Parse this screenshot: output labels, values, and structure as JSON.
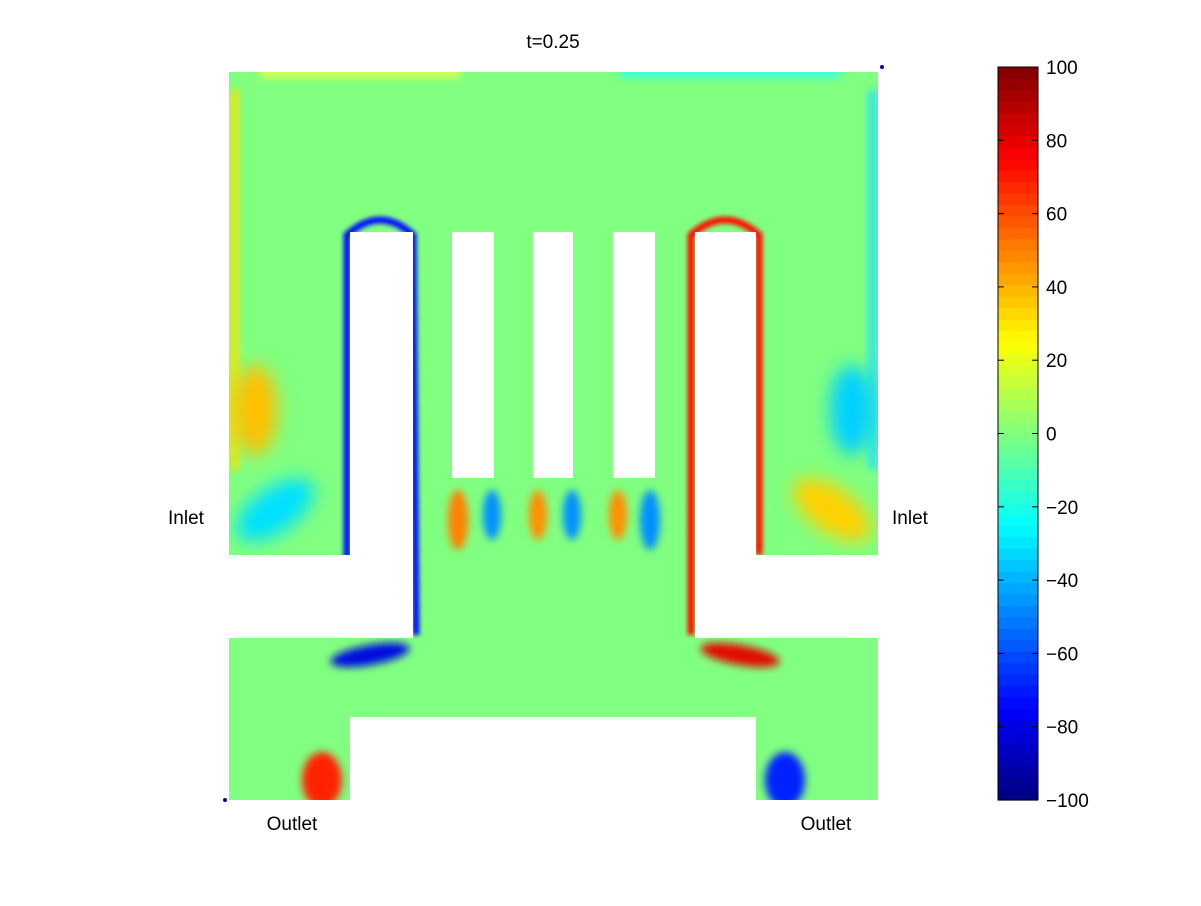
{
  "chart_data": {
    "type": "heatmap",
    "title": "t=0.25",
    "colormap": "jet",
    "clim": [
      -100,
      100
    ],
    "colorbar": {
      "location": "right",
      "ticks": [
        100,
        80,
        60,
        40,
        20,
        0,
        -20,
        -40,
        -60,
        -80,
        -100
      ],
      "tick_labels": [
        "100",
        "80",
        "60",
        "40",
        "20",
        "0",
        "−20",
        "−40",
        "−60",
        "−80",
        "−100"
      ]
    },
    "annotations": {
      "inlet_left": "Inlet",
      "inlet_right": "Inlet",
      "outlet_left": "Outlet",
      "outlet_right": "Outlet"
    },
    "background_value": 0,
    "colors": {
      "zero": "#80ff80",
      "positive_max": "#800000",
      "negative_max": "#000080"
    }
  }
}
